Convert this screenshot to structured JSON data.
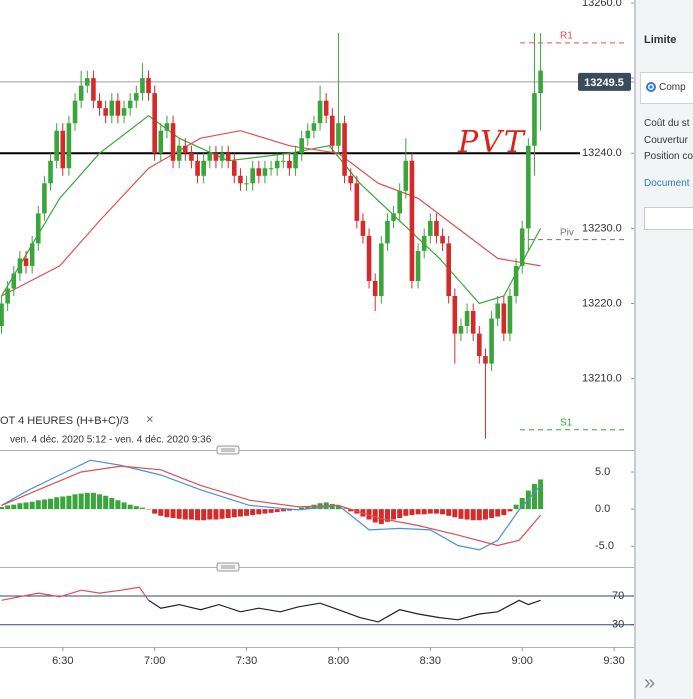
{
  "chart_data": [
    {
      "type": "candlestick",
      "indicator_label": "OT  4 HEURES  (H+B+C)/3",
      "date_range": "ven. 4 déc. 2020 5:12 - ven. 4 déc. 2020 9:36",
      "annotation": "PVT",
      "x": [
        370,
        372,
        374,
        376,
        378,
        380,
        382,
        384,
        386,
        388,
        390,
        392,
        394,
        396,
        398,
        400,
        402,
        404,
        406,
        408,
        410,
        412,
        414,
        416,
        418,
        420,
        422,
        424,
        426,
        428,
        430,
        432,
        434,
        436,
        438,
        440,
        442,
        444,
        446,
        448,
        450,
        452,
        454,
        456,
        458,
        460,
        462,
        464,
        466,
        468,
        470,
        472,
        474,
        476,
        478,
        480,
        482,
        484,
        486,
        488,
        490,
        492,
        494,
        496,
        498,
        500,
        502,
        504,
        506,
        508,
        510,
        512,
        514,
        516,
        518,
        520,
        522,
        524,
        526,
        528,
        530,
        532,
        534,
        536,
        538,
        540,
        542,
        544,
        546
      ],
      "open": [
        13217,
        13220,
        13222,
        13224,
        13226,
        13225,
        13228,
        13232,
        13236,
        13239,
        13243,
        13238,
        13244,
        13247,
        13249,
        13250,
        13247,
        13246,
        13245,
        13247,
        13245,
        13246,
        13247,
        13248,
        13250,
        13248,
        13240,
        13243,
        13244,
        13239,
        13241,
        13240,
        13239,
        13237,
        13239,
        13240,
        13239,
        13240,
        13239,
        13237,
        13236,
        13236,
        13238,
        13237,
        13238,
        13238,
        13239,
        13239,
        13238,
        13240,
        13242,
        13243,
        13244,
        13247,
        13245,
        13241,
        13244,
        13237,
        13236,
        13231,
        13229,
        13223,
        13221,
        13228,
        13231,
        13232,
        13235,
        13239,
        13223,
        13227,
        13229,
        13231,
        13229,
        13228,
        13221,
        13216,
        13217,
        13219,
        13216,
        13213,
        13212,
        13218,
        13220,
        13216,
        13221,
        13225,
        13230,
        13241,
        13248
      ],
      "high": [
        13221,
        13223,
        13225,
        13227,
        13227,
        13229,
        13233,
        13237,
        13240,
        13244,
        13244,
        13245,
        13248,
        13251,
        13251,
        13251,
        13248,
        13247,
        13248,
        13248,
        13247,
        13248,
        13249,
        13252,
        13251,
        13249,
        13244,
        13245,
        13245,
        13242,
        13242,
        13241,
        13240,
        13240,
        13241,
        13241,
        13241,
        13241,
        13240,
        13238,
        13237,
        13239,
        13239,
        13239,
        13239,
        13240,
        13240,
        13240,
        13241,
        13243,
        13244,
        13245,
        13249,
        13248,
        13246,
        13256,
        13245,
        13238,
        13237,
        13232,
        13230,
        13224,
        13229,
        13232,
        13233,
        13236,
        13242,
        13240,
        13228,
        13230,
        13232,
        13232,
        13230,
        13229,
        13222,
        13218,
        13220,
        13220,
        13217,
        13214,
        13219,
        13221,
        13221,
        13222,
        13226,
        13231,
        13242,
        13256,
        13256
      ],
      "low": [
        13216,
        13219,
        13221,
        13223,
        13224,
        13224,
        13227,
        13231,
        13235,
        13238,
        13237,
        13237,
        13243,
        13246,
        13248,
        13246,
        13245,
        13244,
        13244,
        13244,
        13244,
        13245,
        13246,
        13247,
        13247,
        13239,
        13239,
        13242,
        13238,
        13238,
        13239,
        13238,
        13236,
        13236,
        13238,
        13238,
        13238,
        13238,
        13236,
        13235,
        13235,
        13235,
        13236,
        13236,
        13237,
        13237,
        13238,
        13237,
        13237,
        13239,
        13241,
        13242,
        13243,
        13244,
        13240,
        13240,
        13236,
        13235,
        13230,
        13228,
        13222,
        13219,
        13220,
        13227,
        13230,
        13231,
        13234,
        13222,
        13222,
        13226,
        13228,
        13228,
        13227,
        13220,
        13212,
        13215,
        13216,
        13215,
        13212,
        13202,
        13211,
        13217,
        13215,
        13215,
        13220,
        13224,
        13227,
        13237,
        13243
      ],
      "close": [
        13220,
        13222,
        13224,
        13226,
        13225,
        13228,
        13232,
        13236,
        13239,
        13243,
        13238,
        13244,
        13247,
        13249,
        13250,
        13247,
        13246,
        13245,
        13247,
        13245,
        13246,
        13247,
        13248,
        13250,
        13248,
        13240,
        13243,
        13244,
        13239,
        13241,
        13240,
        13239,
        13237,
        13239,
        13240,
        13239,
        13240,
        13239,
        13237,
        13236,
        13236,
        13238,
        13237,
        13238,
        13238,
        13239,
        13239,
        13238,
        13240,
        13242,
        13243,
        13244,
        13247,
        13245,
        13241,
        13244,
        13237,
        13236,
        13231,
        13229,
        13223,
        13221,
        13228,
        13231,
        13232,
        13235,
        13239,
        13223,
        13227,
        13229,
        13231,
        13229,
        13228,
        13221,
        13216,
        13217,
        13219,
        13216,
        13213,
        13212,
        13218,
        13220,
        13216,
        13221,
        13225,
        13230,
        13241,
        13248,
        13251
      ],
      "up_color": "#3aa53a",
      "down_color": "#d42a2a",
      "series": [
        {
          "color": "#3aa53a",
          "x": [
            370,
            389,
            402,
            418,
            428,
            444,
            464,
            477,
            487,
            500,
            513,
            526,
            534,
            546
          ],
          "values": [
            13221,
            13234,
            13240,
            13245,
            13242,
            13239,
            13240,
            13241,
            13236,
            13231,
            13226,
            13220,
            13221,
            13230
          ]
        },
        {
          "color": "#e05050",
          "x": [
            370,
            389,
            402,
            418,
            435,
            448,
            464,
            480,
            493,
            506,
            519,
            532,
            546
          ],
          "values": [
            13221,
            13225,
            13231,
            13238,
            13242,
            13243,
            13241,
            13240,
            13236,
            13234,
            13230,
            13226,
            13225
          ]
        }
      ],
      "levels": [
        {
          "label": "R1",
          "value": 13254.7,
          "color": "#e05050"
        },
        {
          "label": "Piv",
          "value": 13228.5,
          "color": "#777777"
        },
        {
          "label": "S1",
          "value": 13203.2,
          "color": "#3aa53a"
        }
      ],
      "drawn_line": {
        "value": 13240,
        "color": "#000000"
      },
      "last_price": 13249.5,
      "xlim": [
        369.5,
        576.5
      ],
      "ylim": [
        13200.5,
        13260.4
      ],
      "yticks": [
        {
          "value": 13260,
          "label": "13260.0"
        },
        {
          "value": 13250,
          "label": "13250.0"
        },
        {
          "value": 13240,
          "label": "13240.0"
        },
        {
          "value": 13230,
          "label": "13230.0"
        },
        {
          "value": 13220,
          "label": "13220.0"
        },
        {
          "value": 13210,
          "label": "13210.0"
        }
      ]
    },
    {
      "type": "macd",
      "x": [
        370,
        372,
        374,
        376,
        378,
        380,
        382,
        384,
        386,
        388,
        390,
        392,
        394,
        396,
        398,
        400,
        402,
        404,
        406,
        408,
        410,
        412,
        414,
        416,
        418,
        420,
        422,
        424,
        426,
        428,
        430,
        432,
        434,
        436,
        438,
        440,
        442,
        444,
        446,
        448,
        450,
        452,
        454,
        456,
        458,
        460,
        462,
        464,
        466,
        468,
        470,
        472,
        474,
        476,
        478,
        480,
        482,
        484,
        486,
        488,
        490,
        492,
        494,
        496,
        498,
        500,
        502,
        504,
        506,
        508,
        510,
        512,
        514,
        516,
        518,
        520,
        522,
        524,
        526,
        528,
        530,
        532,
        534,
        536,
        538,
        540,
        542,
        544,
        546
      ],
      "values": [
        0.3,
        0.5,
        0.6,
        0.8,
        0.9,
        1.0,
        1.2,
        1.3,
        1.4,
        1.6,
        1.7,
        1.8,
        2.0,
        2.1,
        2.2,
        2.2,
        2.0,
        1.8,
        1.5,
        1.2,
        0.9,
        0.6,
        0.4,
        0.2,
        0.0,
        -0.6,
        -0.9,
        -1.1,
        -1.2,
        -1.3,
        -1.4,
        -1.4,
        -1.5,
        -1.5,
        -1.4,
        -1.4,
        -1.3,
        -1.2,
        -1.1,
        -1.0,
        -0.9,
        -0.8,
        -0.7,
        -0.6,
        -0.5,
        -0.4,
        -0.3,
        -0.2,
        -0.1,
        0.2,
        0.4,
        0.6,
        0.8,
        0.9,
        0.7,
        0.5,
        0.1,
        -0.3,
        -0.6,
        -1.0,
        -1.4,
        -1.8,
        -2.0,
        -1.7,
        -1.4,
        -1.2,
        -0.9,
        -0.8,
        -0.7,
        -0.7,
        -0.6,
        -0.6,
        -0.7,
        -0.9,
        -1.1,
        -1.3,
        -1.4,
        -1.5,
        -1.5,
        -1.4,
        -1.2,
        -1.0,
        -0.8,
        -0.3,
        0.6,
        1.5,
        2.5,
        3.4,
        4.0
      ],
      "up_color": "#3aa53a",
      "down_color": "#d42a2a",
      "series": [
        {
          "color": "#4a90d9",
          "x": [
            370,
            379,
            389,
            399,
            409,
            422,
            435,
            451,
            467,
            480,
            490,
            500,
            510,
            519,
            526,
            532,
            539,
            546
          ],
          "values": [
            0.5,
            2.6,
            4.6,
            6.6,
            5.9,
            4.6,
            2.6,
            0.5,
            -0.1,
            0.5,
            -2.8,
            -2.6,
            -2.8,
            -4.9,
            -5.5,
            -4.2,
            -0.1,
            3.2
          ]
        },
        {
          "color": "#e05050",
          "x": [
            370,
            382,
            396,
            409,
            422,
            435,
            451,
            467,
            480,
            493,
            506,
            519,
            532,
            539,
            546
          ],
          "values": [
            0.5,
            2.6,
            5.0,
            5.8,
            5.3,
            3.2,
            1.2,
            0.3,
            0.5,
            -1.2,
            -2.2,
            -3.5,
            -4.9,
            -4.2,
            -0.8
          ]
        }
      ],
      "xlim": [
        369.5,
        576.5
      ],
      "ylim": [
        -7.8,
        7.7
      ],
      "yticks": [
        {
          "value": 5,
          "label": "5.0"
        },
        {
          "value": 0,
          "label": "0.0"
        },
        {
          "value": -5,
          "label": "-5.0"
        }
      ]
    },
    {
      "type": "line",
      "series": [
        {
          "color": "#e05050",
          "x": [
            370,
            376,
            382,
            389,
            396,
            402,
            409,
            415,
            418
          ],
          "values": [
            64,
            69,
            74,
            69,
            78,
            74,
            78,
            82,
            64
          ]
        },
        {
          "color": "#222222",
          "x": [
            418,
            422,
            428,
            435,
            441,
            448,
            454,
            461,
            467,
            474,
            480,
            487,
            493,
            500,
            506,
            513,
            519,
            526,
            532,
            539,
            542,
            546
          ],
          "values": [
            64,
            53,
            58,
            51,
            58,
            48,
            53,
            48,
            55,
            60,
            51,
            40,
            34,
            51,
            45,
            40,
            37,
            45,
            48,
            64,
            58,
            64
          ]
        }
      ],
      "grid_color": "#2b4a78",
      "xlim": [
        369.5,
        576.5
      ],
      "ylim": [
        2,
        106
      ],
      "yticks": [
        70,
        30
      ],
      "xticks": [
        {
          "value": 390,
          "label": "6:30"
        },
        {
          "value": 420,
          "label": "7:00"
        },
        {
          "value": 450,
          "label": "7:30"
        },
        {
          "value": 480,
          "label": "8:00"
        },
        {
          "value": 510,
          "label": "8:30"
        },
        {
          "value": 540,
          "label": "9:00"
        },
        {
          "value": 570,
          "label": "9:30"
        }
      ]
    }
  ],
  "side_panel": {
    "order_type": "Limite",
    "radio_label": "Comp",
    "lines": [
      "Coût du st",
      "Couvertur",
      "Position co"
    ],
    "link": "Document"
  }
}
